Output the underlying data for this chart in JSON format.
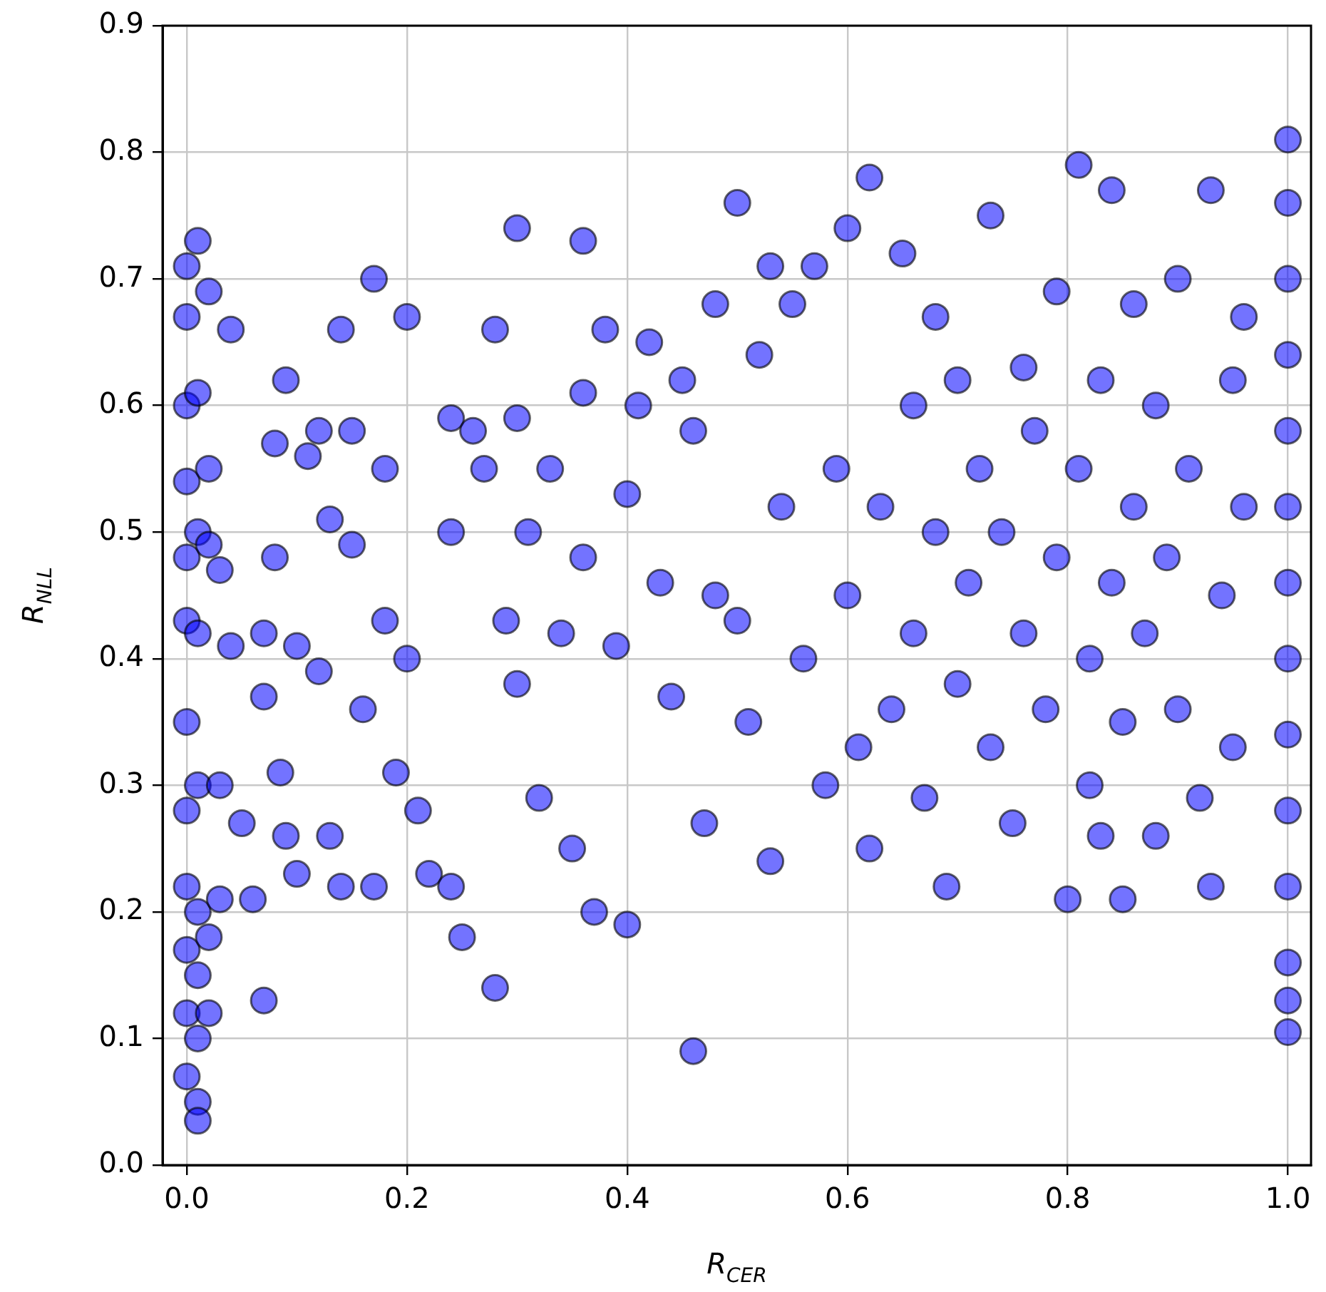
{
  "chart_data": {
    "type": "scatter",
    "xlabel": "R$_{CER}$",
    "ylabel": "R$_{NLL}$",
    "xlim": [
      -0.022,
      1.021
    ],
    "ylim": [
      0,
      0.9
    ],
    "xticks": [
      {
        "value": 0,
        "label": "0.0"
      },
      {
        "value": 0.2,
        "label": "0.2"
      },
      {
        "value": 0.4,
        "label": "0.4"
      },
      {
        "value": 0.6,
        "label": "0.6"
      },
      {
        "value": 0.8,
        "label": "0.8"
      },
      {
        "value": 1,
        "label": "1.0"
      }
    ],
    "yticks": [
      {
        "value": 0,
        "label": "0.0"
      },
      {
        "value": 0.1,
        "label": "0.1"
      },
      {
        "value": 0.2,
        "label": "0.2"
      },
      {
        "value": 0.3,
        "label": "0.3"
      },
      {
        "value": 0.4,
        "label": "0.4"
      },
      {
        "value": 0.5,
        "label": "0.5"
      },
      {
        "value": 0.6,
        "label": "0.6"
      },
      {
        "value": 0.7,
        "label": "0.7"
      },
      {
        "value": 0.8,
        "label": "0.8"
      },
      {
        "value": 0.9,
        "label": "0.9"
      }
    ],
    "grid": true,
    "marker": "circle",
    "legend": false,
    "series": [
      {
        "color": "#0000ff",
        "x": [
          0,
          0,
          0,
          0,
          0,
          0,
          0,
          0,
          0,
          0,
          0,
          0,
          0.01,
          0.01,
          0.01,
          0.01,
          0.01,
          0.01,
          0.01,
          0.01,
          0.01,
          0.01,
          0.02,
          0.02,
          0.02,
          0.02,
          0.02,
          0.03,
          0.03,
          0.03,
          0.04,
          0.04,
          0.05,
          0.06,
          0.07,
          0.07,
          0.07,
          0.08,
          0.08,
          0.085,
          0.09,
          0.09,
          0.1,
          0.1,
          0.11,
          0.12,
          0.12,
          0.13,
          0.13,
          0.14,
          0.14,
          0.15,
          0.15,
          0.16,
          0.17,
          0.17,
          0.18,
          0.18,
          0.19,
          0.2,
          0.2,
          0.21,
          0.22,
          0.24,
          0.24,
          0.24,
          0.25,
          0.26,
          0.27,
          0.28,
          0.28,
          0.29,
          0.3,
          0.3,
          0.3,
          0.31,
          0.32,
          0.33,
          0.34,
          0.35,
          0.36,
          0.36,
          0.36,
          0.37,
          0.38,
          0.39,
          0.4,
          0.4,
          0.41,
          0.42,
          0.43,
          0.44,
          0.45,
          0.46,
          0.46,
          0.47,
          0.48,
          0.48,
          0.5,
          0.5,
          0.51,
          0.52,
          0.53,
          0.53,
          0.54,
          0.55,
          0.56,
          0.57,
          0.58,
          0.59,
          0.6,
          0.6,
          0.61,
          0.62,
          0.62,
          0.63,
          0.64,
          0.65,
          0.66,
          0.66,
          0.67,
          0.68,
          0.68,
          0.69,
          0.7,
          0.7,
          0.71,
          0.72,
          0.73,
          0.73,
          0.74,
          0.75,
          0.76,
          0.76,
          0.77,
          0.78,
          0.79,
          0.79,
          0.8,
          0.81,
          0.81,
          0.82,
          0.82,
          0.83,
          0.83,
          0.84,
          0.84,
          0.85,
          0.85,
          0.86,
          0.86,
          0.87,
          0.88,
          0.88,
          0.89,
          0.9,
          0.9,
          0.91,
          0.92,
          0.93,
          0.93,
          0.94,
          0.95,
          0.95,
          0.96,
          0.96,
          1,
          1,
          1,
          1,
          1,
          1,
          1,
          1,
          1,
          1,
          1,
          1,
          1,
          1
        ],
        "values": [
          0.71,
          0.67,
          0.6,
          0.54,
          0.48,
          0.43,
          0.35,
          0.28,
          0.22,
          0.17,
          0.12,
          0.07,
          0.73,
          0.61,
          0.5,
          0.42,
          0.3,
          0.2,
          0.15,
          0.1,
          0.05,
          0.035,
          0.69,
          0.55,
          0.49,
          0.18,
          0.12,
          0.47,
          0.3,
          0.21,
          0.66,
          0.41,
          0.27,
          0.21,
          0.42,
          0.13,
          0.37,
          0.57,
          0.48,
          0.31,
          0.62,
          0.26,
          0.41,
          0.23,
          0.56,
          0.58,
          0.39,
          0.51,
          0.26,
          0.66,
          0.22,
          0.49,
          0.58,
          0.36,
          0.7,
          0.22,
          0.55,
          0.43,
          0.31,
          0.67,
          0.4,
          0.28,
          0.23,
          0.59,
          0.5,
          0.22,
          0.18,
          0.58,
          0.55,
          0.66,
          0.14,
          0.43,
          0.74,
          0.59,
          0.38,
          0.5,
          0.29,
          0.55,
          0.42,
          0.25,
          0.73,
          0.61,
          0.48,
          0.2,
          0.66,
          0.41,
          0.19,
          0.53,
          0.6,
          0.65,
          0.46,
          0.37,
          0.62,
          0.09,
          0.58,
          0.27,
          0.68,
          0.45,
          0.76,
          0.43,
          0.35,
          0.64,
          0.71,
          0.24,
          0.52,
          0.68,
          0.4,
          0.71,
          0.3,
          0.55,
          0.74,
          0.45,
          0.33,
          0.78,
          0.25,
          0.52,
          0.36,
          0.72,
          0.6,
          0.42,
          0.29,
          0.67,
          0.5,
          0.22,
          0.62,
          0.38,
          0.46,
          0.55,
          0.33,
          0.75,
          0.5,
          0.27,
          0.63,
          0.42,
          0.58,
          0.36,
          0.69,
          0.48,
          0.21,
          0.79,
          0.55,
          0.4,
          0.3,
          0.62,
          0.26,
          0.77,
          0.46,
          0.21,
          0.35,
          0.68,
          0.52,
          0.42,
          0.26,
          0.6,
          0.48,
          0.7,
          0.36,
          0.55,
          0.29,
          0.77,
          0.22,
          0.45,
          0.62,
          0.33,
          0.52,
          0.67,
          0.81,
          0.76,
          0.7,
          0.64,
          0.58,
          0.52,
          0.46,
          0.4,
          0.34,
          0.28,
          0.22,
          0.16,
          0.13,
          0.105
        ]
      }
    ]
  }
}
